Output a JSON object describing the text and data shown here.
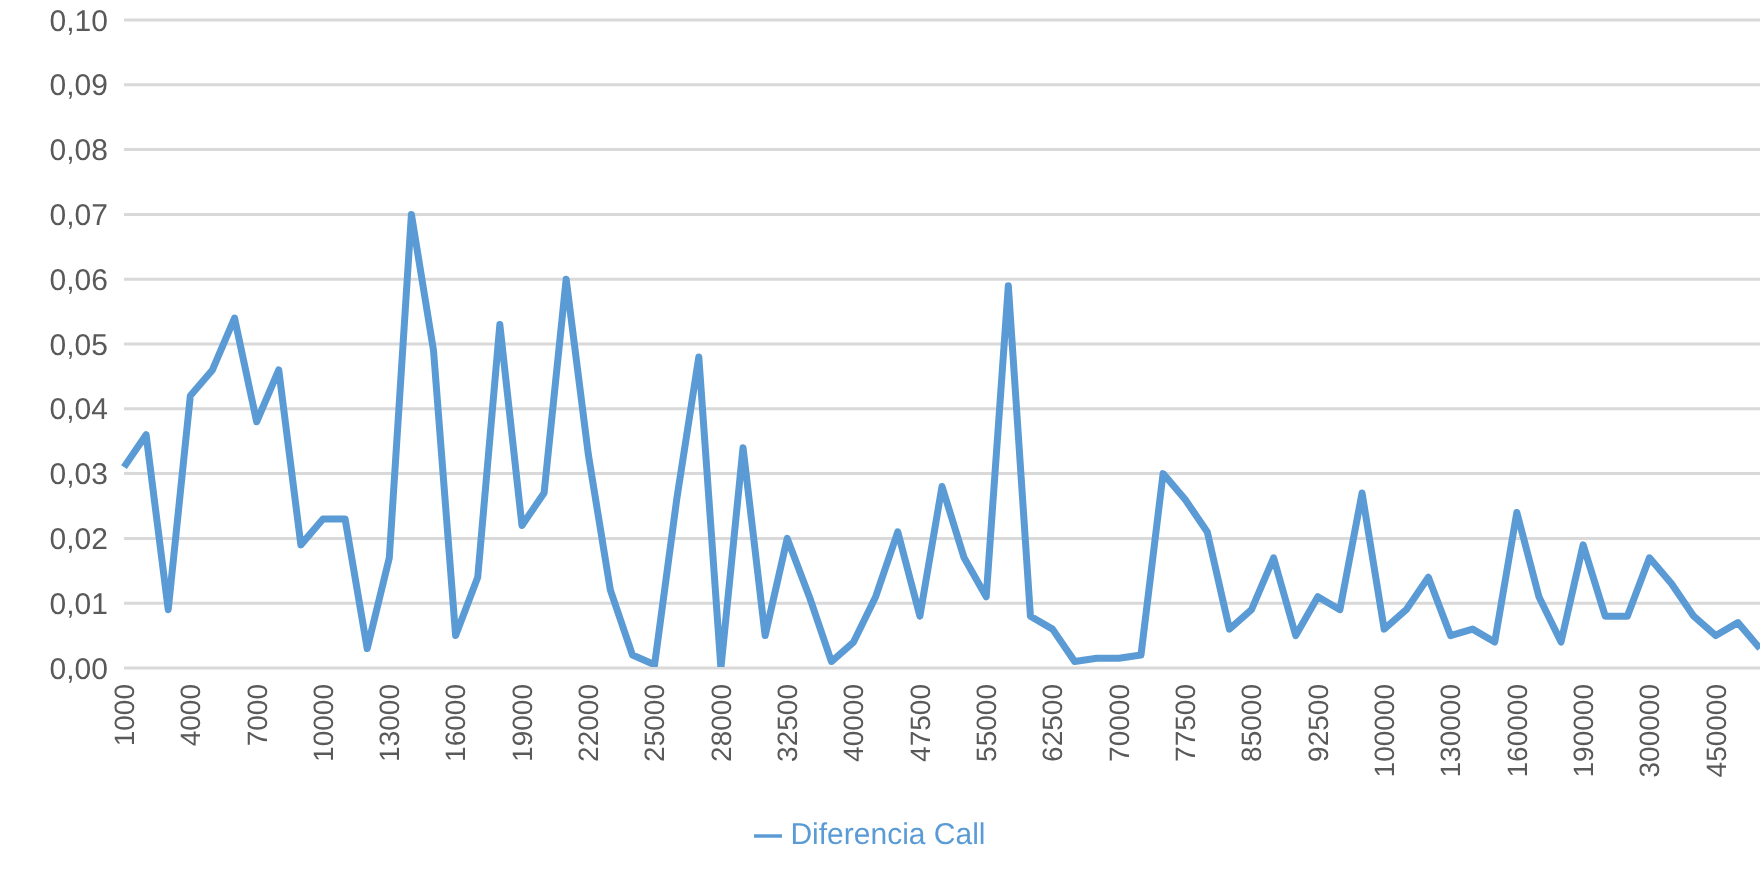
{
  "chart_data": {
    "type": "line",
    "categories": [
      "1000",
      null,
      null,
      "4000",
      null,
      null,
      "7000",
      null,
      null,
      "10000",
      null,
      null,
      "13000",
      null,
      null,
      "16000",
      null,
      null,
      "19000",
      null,
      null,
      "22000",
      null,
      null,
      "25000",
      null,
      null,
      "28000",
      null,
      null,
      "32500",
      null,
      null,
      "40000",
      null,
      null,
      "47500",
      null,
      null,
      "55000",
      null,
      null,
      "62500",
      null,
      null,
      "70000",
      null,
      null,
      "77500",
      null,
      null,
      "85000",
      null,
      null,
      "92500",
      null,
      null,
      "100000",
      null,
      null,
      "130000",
      null,
      null,
      "160000",
      null,
      null,
      "190000",
      null,
      null,
      "300000",
      null,
      null,
      "450000",
      null,
      null
    ],
    "series": [
      {
        "name": "Diferencia Call",
        "color": "#5b9bd5",
        "values": [
          0.031,
          0.036,
          0.009,
          0.042,
          0.046,
          0.054,
          0.038,
          0.046,
          0.019,
          0.023,
          0.023,
          0.003,
          0.017,
          0.07,
          0.049,
          0.005,
          0.014,
          0.053,
          0.022,
          0.027,
          0.06,
          0.033,
          0.012,
          0.002,
          0.0005,
          0.026,
          0.048,
          0.0,
          0.034,
          0.005,
          0.02,
          0.011,
          0.001,
          0.004,
          0.011,
          0.021,
          0.008,
          0.028,
          0.017,
          0.011,
          0.059,
          0.008,
          0.006,
          0.001,
          0.0015,
          0.0015,
          0.002,
          0.03,
          0.026,
          0.021,
          0.006,
          0.009,
          0.017,
          0.005,
          0.011,
          0.009,
          0.027,
          0.006,
          0.009,
          0.014,
          0.005,
          0.006,
          0.004,
          0.024,
          0.011,
          0.004,
          0.019,
          0.008,
          0.008,
          0.017,
          0.013,
          0.008,
          0.005,
          0.007,
          0.003
        ]
      }
    ],
    "ylim": [
      0,
      0.1
    ],
    "yticks": [
      {
        "value": 0,
        "label": "0,00"
      },
      {
        "value": 0.01,
        "label": "0,01"
      },
      {
        "value": 0.02,
        "label": "0,02"
      },
      {
        "value": 0.03,
        "label": "0,03"
      },
      {
        "value": 0.04,
        "label": "0,04"
      },
      {
        "value": 0.05,
        "label": "0,05"
      },
      {
        "value": 0.06,
        "label": "0,06"
      },
      {
        "value": 0.07,
        "label": "0,07"
      },
      {
        "value": 0.08,
        "label": "0,08"
      },
      {
        "value": 0.09,
        "label": "0,09"
      },
      {
        "value": 0.1,
        "label": "0,10"
      }
    ],
    "grid": "y",
    "legend": "bottom",
    "marker": "none"
  }
}
